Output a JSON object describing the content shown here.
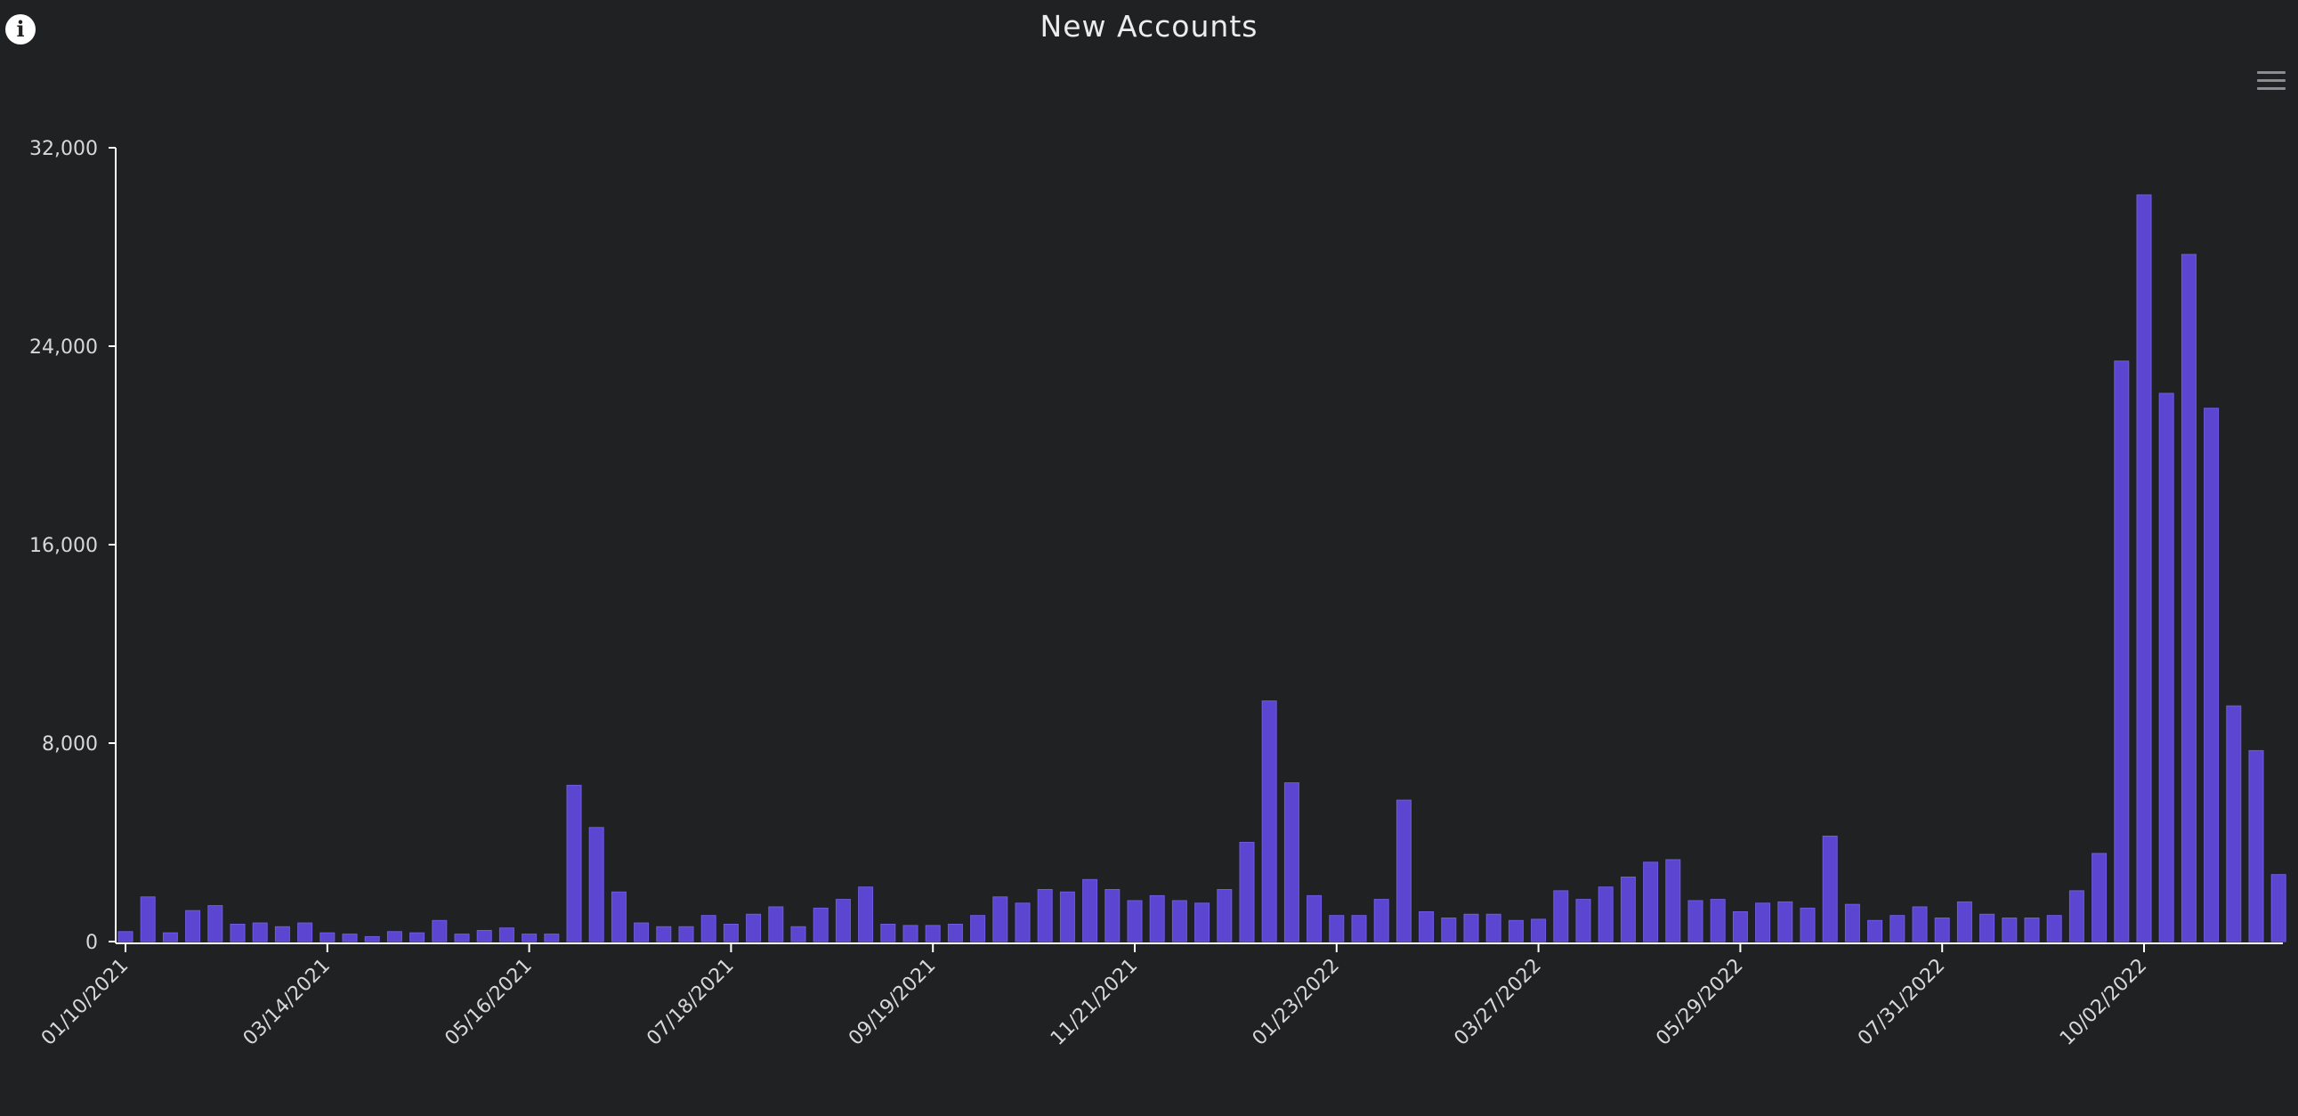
{
  "chart_data": {
    "type": "bar",
    "title": "New Accounts",
    "xlabel": "",
    "ylabel": "",
    "ylim": [
      0,
      32000
    ],
    "yticks": [
      0,
      8000,
      16000,
      24000,
      32000
    ],
    "ytick_labels": [
      "0",
      "8,000",
      "16,000",
      "24,000",
      "32,000"
    ],
    "xtick_labels": [
      "01/10/2021",
      "03/14/2021",
      "05/16/2021",
      "07/18/2021",
      "09/19/2021",
      "11/21/2021",
      "01/23/2022",
      "03/27/2022",
      "05/29/2022",
      "07/31/2022",
      "10/02/2022"
    ],
    "xtick_every": 9,
    "grid": false,
    "colors": {
      "bar": "#5b45d1",
      "bar_stroke": "#6f5ae0",
      "axis": "#ffffff",
      "background": "#202123"
    },
    "series": [
      {
        "values": [
          400,
          1800,
          350,
          1250,
          1450,
          700,
          750,
          600,
          750,
          350,
          300,
          200,
          400,
          350,
          850,
          300,
          450,
          550,
          300,
          300,
          6300,
          4600,
          2000,
          750,
          600,
          600,
          1050,
          700,
          1100,
          1400,
          600,
          1350,
          1700,
          2200,
          700,
          650,
          650,
          700,
          1050,
          1800,
          1550,
          2100,
          2000,
          2500,
          2100,
          1650,
          1850,
          1650,
          1550,
          2100,
          4000,
          9700,
          6400,
          1850,
          1050,
          1050,
          1700,
          5700,
          1200,
          950,
          1100,
          1100,
          850,
          900,
          2050,
          1700,
          2200,
          2600,
          3200,
          3300,
          1650,
          1700,
          1200,
          1550,
          1600,
          1350,
          4250,
          1500,
          850,
          1050,
          1400,
          950,
          1600,
          1100,
          950,
          950,
          1050,
          2050,
          3550,
          23400,
          30100,
          22100,
          27700,
          21500,
          9500,
          7700,
          2700
        ]
      }
    ]
  }
}
